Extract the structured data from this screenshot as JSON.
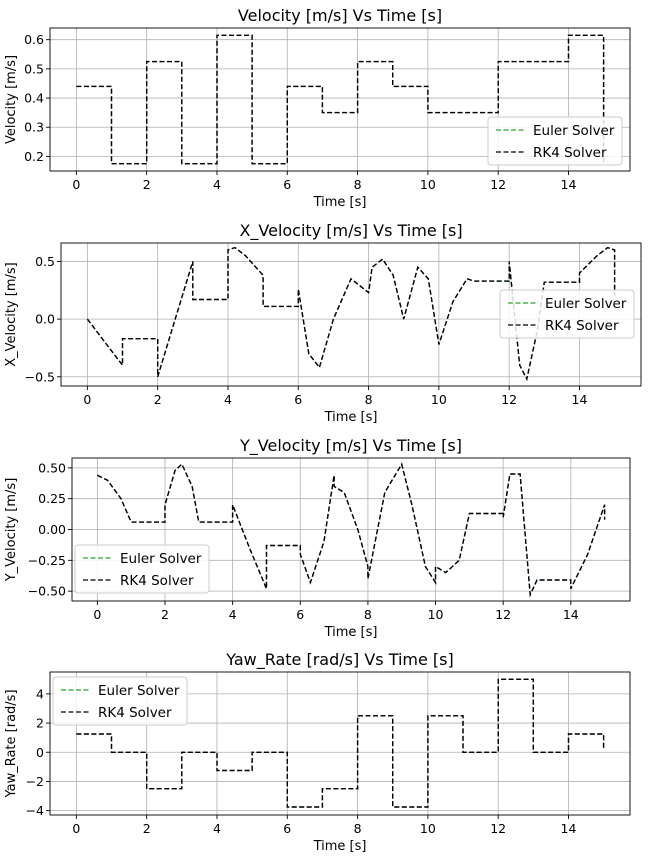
{
  "chart_data": [
    {
      "type": "line",
      "title": "Velocity [m/s] Vs Time [s]",
      "xlabel": "Time [s]",
      "ylabel": "Velocity [m/s]",
      "xlim": [
        -0.75,
        15.75
      ],
      "ylim": [
        0.15,
        0.64
      ],
      "xticks": [
        0,
        2,
        4,
        6,
        8,
        10,
        12,
        14
      ],
      "yticks": [
        0.2,
        0.3,
        0.4,
        0.5,
        0.6
      ],
      "ytick_labels": [
        "0.2",
        "0.3",
        "0.4",
        "0.5",
        "0.6"
      ],
      "grid": true,
      "legend_position": "lower-right",
      "series": [
        {
          "name": "Euler Solver",
          "color": "#2ca02c",
          "style": "dashed",
          "x": [
            0,
            1,
            1,
            2,
            2,
            3,
            3,
            4,
            4,
            5,
            5,
            6,
            6,
            7,
            7,
            8,
            8,
            9,
            9,
            10,
            10,
            11,
            11,
            12,
            12,
            13,
            13,
            14,
            14,
            15,
            15
          ],
          "y": [
            0.44,
            0.44,
            0.175,
            0.175,
            0.525,
            0.525,
            0.175,
            0.175,
            0.615,
            0.615,
            0.175,
            0.175,
            0.44,
            0.44,
            0.35,
            0.35,
            0.525,
            0.525,
            0.44,
            0.44,
            0.35,
            0.35,
            0.35,
            0.35,
            0.525,
            0.525,
            0.525,
            0.525,
            0.615,
            0.615,
            0.175
          ]
        },
        {
          "name": "RK4 Solver",
          "color": "#000000",
          "style": "dashed",
          "x": [
            0,
            1,
            1,
            2,
            2,
            3,
            3,
            4,
            4,
            5,
            5,
            6,
            6,
            7,
            7,
            8,
            8,
            9,
            9,
            10,
            10,
            11,
            11,
            12,
            12,
            13,
            13,
            14,
            14,
            15,
            15
          ],
          "y": [
            0.44,
            0.44,
            0.175,
            0.175,
            0.525,
            0.525,
            0.175,
            0.175,
            0.615,
            0.615,
            0.175,
            0.175,
            0.44,
            0.44,
            0.35,
            0.35,
            0.525,
            0.525,
            0.44,
            0.44,
            0.35,
            0.35,
            0.35,
            0.35,
            0.525,
            0.525,
            0.525,
            0.525,
            0.615,
            0.615,
            0.175
          ]
        }
      ]
    },
    {
      "type": "line",
      "title": "X_Velocity [m/s] Vs Time [s]",
      "xlabel": "Time [s]",
      "ylabel": "X_Velocity [m/s]",
      "xlim": [
        -0.75,
        15.75
      ],
      "ylim": [
        -0.58,
        0.66
      ],
      "xticks": [
        0,
        2,
        4,
        6,
        8,
        10,
        12,
        14
      ],
      "yticks": [
        -0.5,
        0.0,
        0.5
      ],
      "ytick_labels": [
        "−0.5",
        "0.0",
        "0.5"
      ],
      "grid": true,
      "legend_position": "center-right",
      "series": [
        {
          "name": "Euler Solver",
          "color": "#2ca02c",
          "style": "dashed",
          "x": [
            0,
            0.5,
            1,
            1,
            2,
            2,
            2.5,
            3,
            3,
            4,
            4,
            4.2,
            4.5,
            5,
            5,
            6,
            6,
            6.3,
            6.6,
            7,
            7.5,
            8,
            8.1,
            8.4,
            8.7,
            9,
            9.4,
            9.7,
            10,
            10.4,
            10.8,
            11,
            12,
            12,
            12.3,
            12.5,
            12.8,
            13,
            14,
            14,
            14.5,
            14.8,
            15,
            15
          ],
          "y": [
            0.0,
            -0.2,
            -0.4,
            -0.17,
            -0.17,
            -0.5,
            0.0,
            0.5,
            0.17,
            0.17,
            0.6,
            0.62,
            0.55,
            0.38,
            0.11,
            0.11,
            0.26,
            -0.3,
            -0.42,
            0.0,
            0.35,
            0.23,
            0.45,
            0.52,
            0.38,
            0.0,
            0.45,
            0.35,
            -0.22,
            0.15,
            0.35,
            0.33,
            0.33,
            0.5,
            -0.4,
            -0.52,
            -0.1,
            0.32,
            0.32,
            0.4,
            0.55,
            0.62,
            0.6,
            0.2
          ]
        },
        {
          "name": "RK4 Solver",
          "color": "#000000",
          "style": "dashed",
          "x": [
            0,
            0.5,
            1,
            1,
            2,
            2,
            2.5,
            3,
            3,
            4,
            4,
            4.2,
            4.5,
            5,
            5,
            6,
            6,
            6.3,
            6.6,
            7,
            7.5,
            8,
            8.1,
            8.4,
            8.7,
            9,
            9.4,
            9.7,
            10,
            10.4,
            10.8,
            11,
            12,
            12,
            12.3,
            12.5,
            12.8,
            13,
            14,
            14,
            14.5,
            14.8,
            15,
            15
          ],
          "y": [
            0.0,
            -0.2,
            -0.4,
            -0.17,
            -0.17,
            -0.5,
            0.0,
            0.5,
            0.17,
            0.17,
            0.6,
            0.62,
            0.55,
            0.38,
            0.11,
            0.11,
            0.26,
            -0.3,
            -0.42,
            0.0,
            0.35,
            0.23,
            0.45,
            0.52,
            0.38,
            0.0,
            0.45,
            0.35,
            -0.22,
            0.15,
            0.35,
            0.33,
            0.33,
            0.5,
            -0.4,
            -0.52,
            -0.1,
            0.32,
            0.32,
            0.4,
            0.55,
            0.62,
            0.6,
            0.2
          ]
        }
      ]
    },
    {
      "type": "line",
      "title": "Y_Velocity [m/s] Vs Time [s]",
      "xlabel": "Time [s]",
      "ylabel": "Y_Velocity [m/s]",
      "xlim": [
        -0.75,
        15.75
      ],
      "ylim": [
        -0.58,
        0.58
      ],
      "xticks": [
        0,
        2,
        4,
        6,
        8,
        10,
        12,
        14
      ],
      "yticks": [
        -0.5,
        -0.25,
        0.0,
        0.25,
        0.5
      ],
      "ytick_labels": [
        "−0.50",
        "−0.25",
        "0.00",
        "0.25",
        "0.50"
      ],
      "grid": true,
      "legend_position": "lower-left",
      "series": [
        {
          "name": "Euler Solver",
          "color": "#2ca02c",
          "style": "dashed",
          "x": [
            0,
            0.3,
            0.7,
            1,
            1,
            2,
            2,
            2.3,
            2.5,
            2.8,
            3,
            3,
            4,
            4,
            4.5,
            5,
            5,
            6,
            6,
            6.3,
            6.7,
            7,
            7,
            7.3,
            7.7,
            8,
            8,
            8.5,
            9,
            9.3,
            9.7,
            10,
            10,
            10.3,
            10.7,
            11,
            12,
            12,
            12.2,
            12.5,
            12.8,
            13,
            14,
            14,
            14.5,
            15,
            15
          ],
          "y": [
            0.44,
            0.4,
            0.25,
            0.06,
            0.06,
            0.06,
            0.2,
            0.48,
            0.53,
            0.35,
            0.06,
            0.06,
            0.06,
            0.2,
            -0.15,
            -0.48,
            -0.13,
            -0.13,
            -0.2,
            -0.43,
            -0.1,
            0.44,
            0.35,
            0.3,
            0.0,
            -0.3,
            -0.4,
            0.3,
            0.53,
            0.2,
            -0.3,
            -0.43,
            -0.3,
            -0.35,
            -0.25,
            0.13,
            0.13,
            0.1,
            0.45,
            0.45,
            -0.53,
            -0.41,
            -0.41,
            -0.48,
            -0.2,
            0.2,
            0.08
          ]
        },
        {
          "name": "RK4 Solver",
          "color": "#000000",
          "style": "dashed",
          "x": [
            0,
            0.3,
            0.7,
            1,
            1,
            2,
            2,
            2.3,
            2.5,
            2.8,
            3,
            3,
            4,
            4,
            4.5,
            5,
            5,
            6,
            6,
            6.3,
            6.7,
            7,
            7,
            7.3,
            7.7,
            8,
            8,
            8.5,
            9,
            9.3,
            9.7,
            10,
            10,
            10.3,
            10.7,
            11,
            12,
            12,
            12.2,
            12.5,
            12.8,
            13,
            14,
            14,
            14.5,
            15,
            15
          ],
          "y": [
            0.44,
            0.4,
            0.25,
            0.06,
            0.06,
            0.06,
            0.2,
            0.48,
            0.53,
            0.35,
            0.06,
            0.06,
            0.06,
            0.2,
            -0.15,
            -0.48,
            -0.13,
            -0.13,
            -0.2,
            -0.43,
            -0.1,
            0.44,
            0.35,
            0.3,
            0.0,
            -0.3,
            -0.4,
            0.3,
            0.53,
            0.2,
            -0.3,
            -0.43,
            -0.3,
            -0.35,
            -0.25,
            0.13,
            0.13,
            0.1,
            0.45,
            0.45,
            -0.53,
            -0.41,
            -0.41,
            -0.48,
            -0.2,
            0.2,
            0.08
          ]
        }
      ]
    },
    {
      "type": "line",
      "title": "Yaw_Rate [rad/s] Vs Time [s]",
      "xlabel": "Time [s]",
      "ylabel": "Yaw_Rate [rad/s]",
      "xlim": [
        -0.75,
        15.75
      ],
      "ylim": [
        -4.3,
        5.5
      ],
      "xticks": [
        0,
        2,
        4,
        6,
        8,
        10,
        12,
        14
      ],
      "yticks": [
        -4,
        -2,
        0,
        2,
        4
      ],
      "ytick_labels": [
        "−4",
        "−2",
        "0",
        "2",
        "4"
      ],
      "grid": true,
      "legend_position": "upper-left",
      "series": [
        {
          "name": "Euler Solver",
          "color": "#2ca02c",
          "style": "dashed",
          "x": [
            0,
            1,
            1,
            2,
            2,
            3,
            3,
            4,
            4,
            5,
            5,
            6,
            6,
            7,
            7,
            8,
            8,
            9,
            9,
            10,
            10,
            11,
            11,
            12,
            12,
            13,
            13,
            14,
            14,
            15,
            15
          ],
          "y": [
            1.25,
            1.25,
            0,
            0,
            -2.5,
            -2.5,
            0,
            0,
            -1.25,
            -1.25,
            0,
            0,
            -3.75,
            -3.75,
            -2.5,
            -2.5,
            2.5,
            2.5,
            -3.75,
            -3.75,
            2.5,
            2.5,
            0,
            0,
            5.0,
            5.0,
            0,
            0,
            1.25,
            1.25,
            0.2
          ]
        },
        {
          "name": "RK4 Solver",
          "color": "#000000",
          "style": "dashed",
          "x": [
            0,
            1,
            1,
            2,
            2,
            3,
            3,
            4,
            4,
            5,
            5,
            6,
            6,
            7,
            7,
            8,
            8,
            9,
            9,
            10,
            10,
            11,
            11,
            12,
            12,
            13,
            13,
            14,
            14,
            15,
            15
          ],
          "y": [
            1.25,
            1.25,
            0,
            0,
            -2.5,
            -2.5,
            0,
            0,
            -1.25,
            -1.25,
            0,
            0,
            -3.75,
            -3.75,
            -2.5,
            -2.5,
            2.5,
            2.5,
            -3.75,
            -3.75,
            2.5,
            2.5,
            0,
            0,
            5.0,
            5.0,
            0,
            0,
            1.25,
            1.25,
            0.2
          ]
        }
      ]
    }
  ]
}
